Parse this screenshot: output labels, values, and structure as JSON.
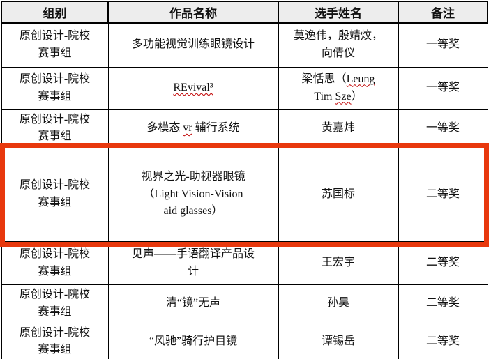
{
  "page": {
    "background": "#ffffff"
  },
  "highlight": {
    "color": "#e8380d"
  },
  "table": {
    "headers": [
      "组别",
      "作品名称",
      "选手姓名",
      "备注"
    ],
    "rows": [
      {
        "group": [
          {
            "text": "原创设计-院校\n赛事组"
          }
        ],
        "work": [
          {
            "text": "多功能视觉训练眼镜设计"
          }
        ],
        "name": [
          {
            "text": "莫逸伟，殷靖炆，\n向倩仪"
          }
        ],
        "award": [
          {
            "text": "一等奖"
          }
        ],
        "highlighted": false
      },
      {
        "group": [
          {
            "text": "原创设计-院校\n赛事组"
          }
        ],
        "work": [
          {
            "text": "REvival³",
            "wavy": true
          }
        ],
        "name": [
          {
            "text": "梁恬思（"
          },
          {
            "text": "Leung",
            "wavy": true
          },
          {
            "text": "\nTim "
          },
          {
            "text": "Sze",
            "wavy": true
          },
          {
            "text": "）"
          }
        ],
        "award": [
          {
            "text": "一等奖"
          }
        ],
        "highlighted": false
      },
      {
        "group": [
          {
            "text": "原创设计-院校\n赛事组"
          }
        ],
        "work": [
          {
            "text": "多模态 "
          },
          {
            "text": "vr",
            "wavy": true
          },
          {
            "text": " 辅行系统"
          }
        ],
        "name": [
          {
            "text": "黄嘉炜"
          }
        ],
        "award": [
          {
            "text": "一等奖"
          }
        ],
        "highlighted": false
      },
      {
        "group": [
          {
            "text": "原创设计-院校\n赛事组"
          }
        ],
        "work": [
          {
            "text": "视界之光-助视器眼镜\n（Light Vision-Vision\naid glasses）"
          }
        ],
        "name": [
          {
            "text": "苏国标"
          }
        ],
        "award": [
          {
            "text": "二等奖"
          }
        ],
        "highlighted": true
      },
      {
        "group": [
          {
            "text": "原创设计-院校\n赛事组"
          }
        ],
        "work": [
          {
            "text": "见声——手语翻译产品设\n计"
          }
        ],
        "name": [
          {
            "text": "王宏宇"
          }
        ],
        "award": [
          {
            "text": "二等奖"
          }
        ],
        "highlighted": false
      },
      {
        "group": [
          {
            "text": "原创设计-院校\n赛事组"
          }
        ],
        "work": [
          {
            "text": "清“镜”无声"
          }
        ],
        "name": [
          {
            "text": "孙昊"
          }
        ],
        "award": [
          {
            "text": "二等奖"
          }
        ],
        "highlighted": false
      },
      {
        "group": [
          {
            "text": "原创设计-院校\n赛事组"
          }
        ],
        "work": [
          {
            "text": "“风驰”骑行护目镜"
          }
        ],
        "name": [
          {
            "text": "谭锡岳"
          }
        ],
        "award": [
          {
            "text": "二等奖"
          }
        ],
        "highlighted": false
      },
      {
        "group": [
          {
            "text": ""
          }
        ],
        "work": [
          {
            "text": ""
          }
        ],
        "name": [
          {
            "text": ""
          }
        ],
        "award": [
          {
            "text": ""
          }
        ],
        "highlighted": false
      }
    ]
  }
}
